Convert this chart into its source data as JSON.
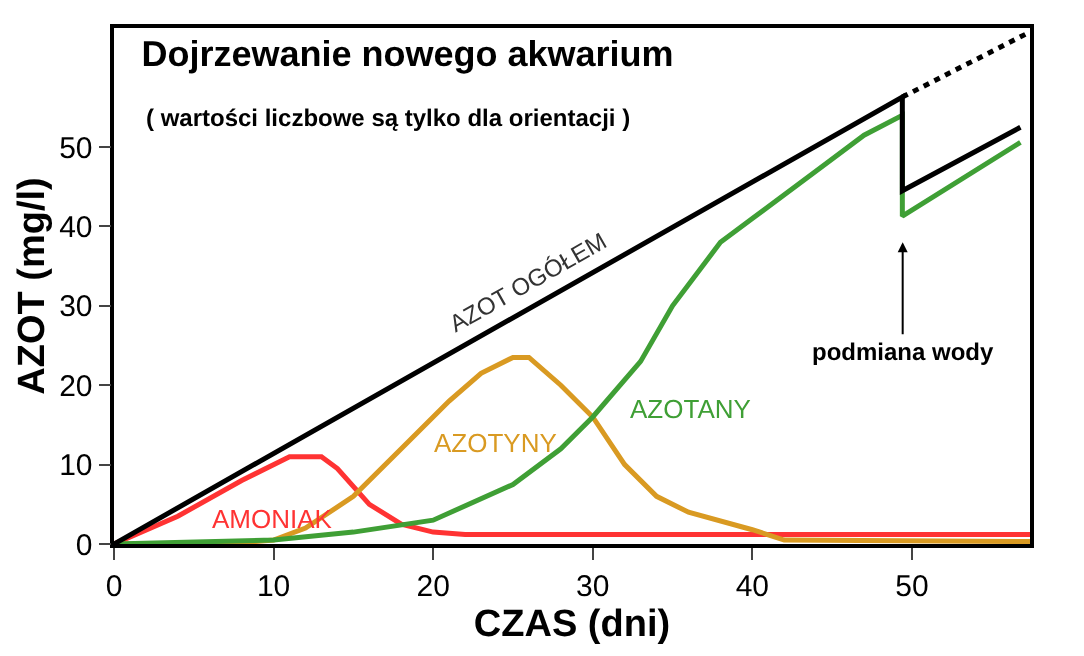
{
  "chart_data": {
    "type": "line",
    "title": "Dojrzewanie nowego akwarium",
    "subtitle": "( wartości liczbowe są tylko dla orientacji )",
    "xlabel": "CZAS (dni)",
    "ylabel": "AZOT (mg/l)",
    "xlim": [
      0,
      57.4
    ],
    "ylim": [
      0,
      65
    ],
    "xticks": [
      0,
      10,
      20,
      30,
      40,
      50
    ],
    "yticks": [
      0,
      10,
      20,
      30,
      40,
      50
    ],
    "grid": false,
    "marker": "none",
    "series": [
      {
        "color": "#ff3333",
        "x": [
          0,
          4,
          8,
          11,
          13,
          14,
          16,
          18,
          20,
          22,
          57.4
        ],
        "values": [
          0,
          3.5,
          8,
          11,
          11,
          9.5,
          5,
          2.5,
          1.5,
          1.2,
          1.2
        ]
      },
      {
        "color": "#d99a22",
        "x": [
          0,
          7,
          10,
          12,
          15,
          18,
          21,
          23,
          25,
          26,
          28,
          30,
          32,
          34,
          36,
          40,
          42,
          57.4
        ],
        "values": [
          0,
          0,
          0.5,
          2,
          6,
          12,
          18,
          21.5,
          23.5,
          23.5,
          20,
          16,
          10,
          6,
          4,
          1.8,
          0.5,
          0.3
        ]
      },
      {
        "color": "#3f9f35",
        "x": [
          0,
          10,
          15,
          20,
          25,
          28,
          30,
          33,
          35,
          38,
          40,
          44,
          47,
          49.4,
          49.4,
          56.8
        ],
        "values": [
          0,
          0.5,
          1.5,
          3,
          7.5,
          12,
          16,
          23,
          30,
          38,
          41,
          47,
          51.5,
          54,
          41.3,
          50.6
        ]
      },
      {
        "color": "#000000",
        "x": [
          0,
          49.4,
          49.4,
          56.8
        ],
        "values": [
          0,
          56.3,
          44.5,
          52.5
        ]
      },
      {
        "color": "#000000",
        "line_style": "dotted",
        "x": [
          49.4,
          57.4
        ],
        "values": [
          56.3,
          64.5
        ]
      }
    ],
    "annotations": [
      "AMONIAK",
      "AZOTYNY",
      "AZOTANY",
      "AZOT OGÓŁEM",
      "podmiana wody"
    ]
  }
}
